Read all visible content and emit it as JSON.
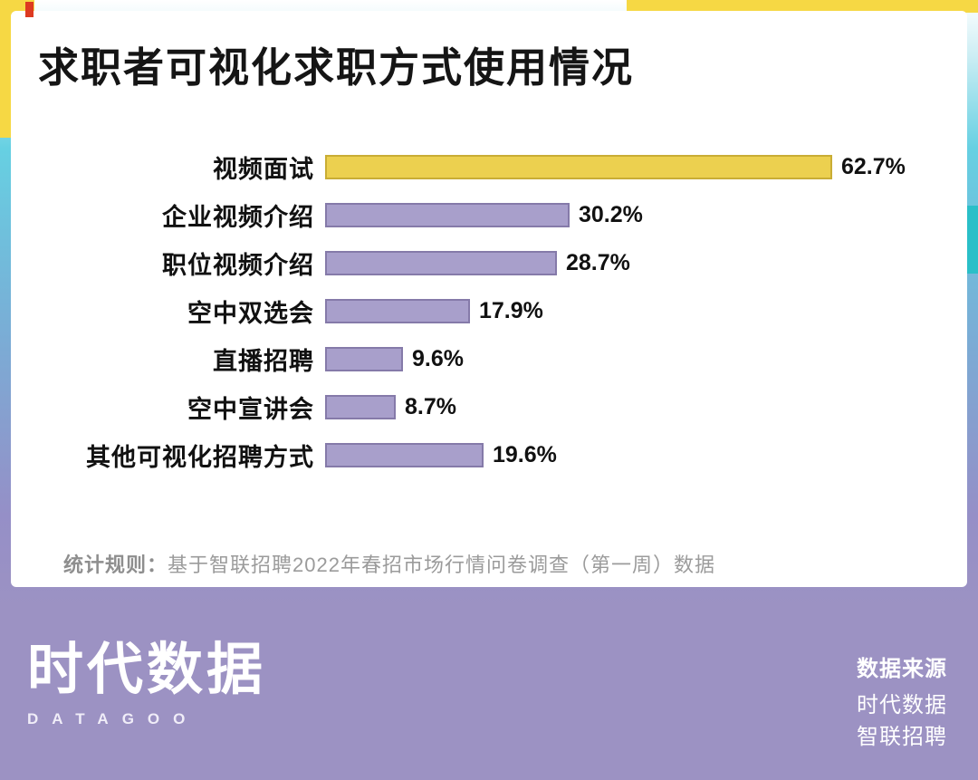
{
  "card": {
    "title": "求职者可视化求职方式使用情况",
    "footnote": {
      "label": "统计规则：",
      "text": "基于智联招聘2022年春招市场行情问卷调查（第一周）数据"
    }
  },
  "chart_data": {
    "type": "bar",
    "orientation": "horizontal",
    "title": "求职者可视化求职方式使用情况",
    "categories": [
      "视频面试",
      "企业视频介绍",
      "职位视频介绍",
      "空中双选会",
      "直播招聘",
      "空中宣讲会",
      "其他可视化招聘方式"
    ],
    "values": [
      62.7,
      30.2,
      28.7,
      17.9,
      9.6,
      8.7,
      19.6
    ],
    "value_labels": [
      "62.7%",
      "30.2%",
      "28.7%",
      "17.9%",
      "9.6%",
      "8.7%",
      "19.6%"
    ],
    "highlight_index": 0,
    "xlim": [
      0,
      70
    ],
    "grid": false,
    "legend": false,
    "bar_colors": {
      "highlight": "#ecd04f",
      "highlight_border": "#c9ad35",
      "default": "#a89fcb",
      "default_border": "#857aa9"
    }
  },
  "footer": {
    "logo_text": "时代数据",
    "logo_subtext": "DATAGOO",
    "source_label": "数据来源",
    "sources": [
      "时代数据",
      "智联招聘"
    ]
  },
  "colors": {
    "accent_yellow": "#f6d844",
    "accent_red": "#dd3a21",
    "accent_teal": "#2abfc8",
    "background_top": "#66d0e2",
    "background_bottom": "#9c92c3",
    "card_background": "#ffffff"
  }
}
